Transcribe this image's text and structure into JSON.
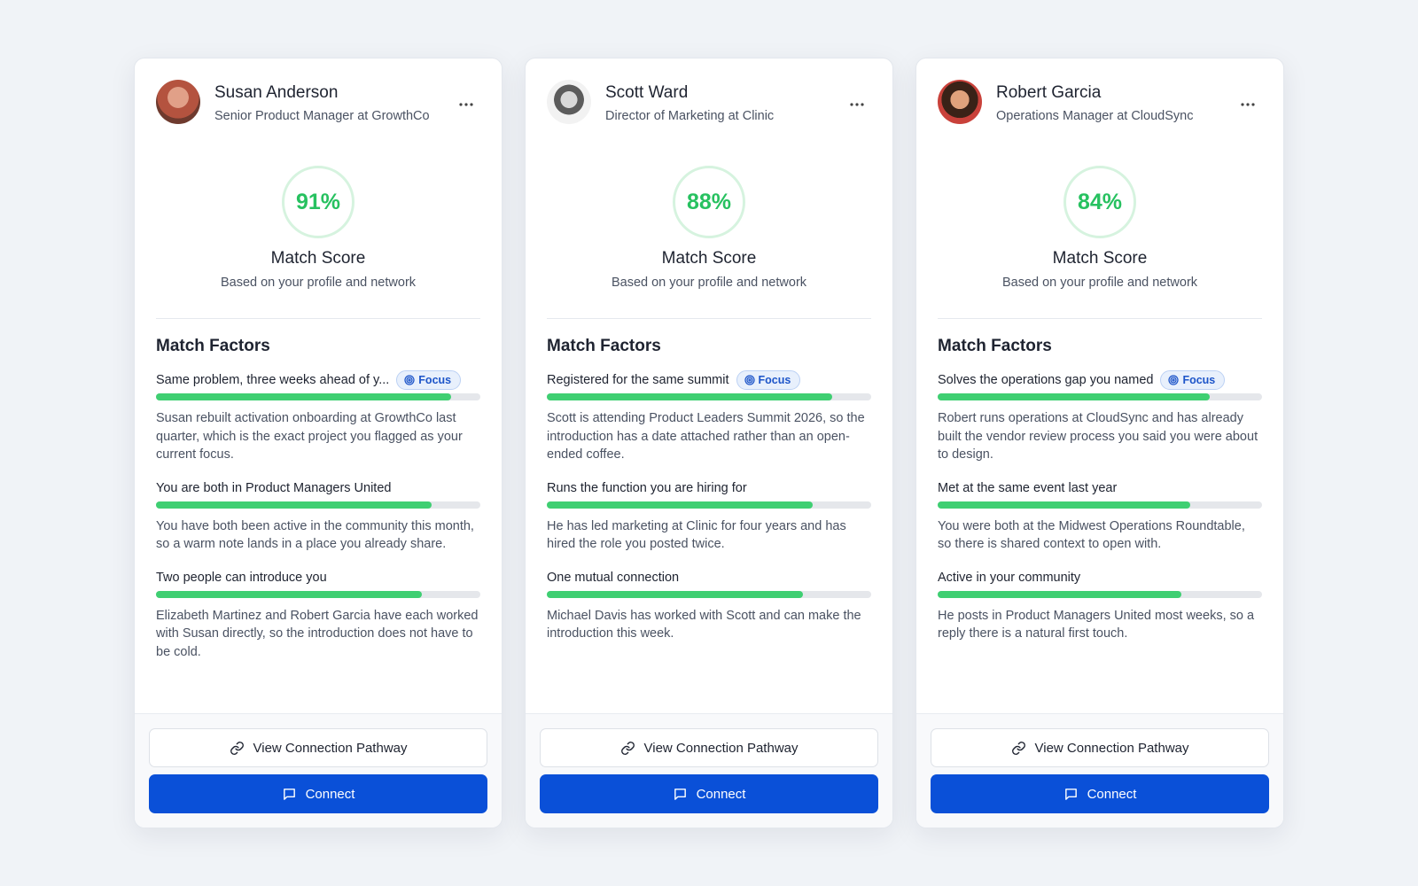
{
  "cards": [
    {
      "name": "Susan Anderson",
      "title": "Senior Product Manager at GrowthCo",
      "score": "91%",
      "score_label": "Match Score",
      "score_note": "Based on your profile and network",
      "factors_heading": "Match Factors",
      "factors": [
        {
          "title": "Same problem, three weeks ahead of y...",
          "badge": "Focus",
          "strength": 91,
          "description": "Susan rebuilt activation onboarding at GrowthCo last quarter, which is the exact project you flagged as your current focus."
        },
        {
          "title": "You are both in Product Managers United",
          "strength": 85,
          "description": "You have both been active in the community this month, so a warm note lands in a place you already share."
        },
        {
          "title": "Two people can introduce you",
          "strength": 82,
          "description": "Elizabeth Martinez and Robert Garcia have each worked with Susan directly, so the introduction does not have to be cold."
        }
      ],
      "actions": {
        "pathway": "View Connection Pathway",
        "connect": "Connect"
      }
    },
    {
      "name": "Scott Ward",
      "title": "Director of Marketing at Clinic",
      "score": "88%",
      "score_label": "Match Score",
      "score_note": "Based on your profile and network",
      "factors_heading": "Match Factors",
      "factors": [
        {
          "title": "Registered for the same summit",
          "badge": "Focus",
          "strength": 88,
          "description": "Scott is attending Product Leaders Summit 2026, so the introduction has a date attached rather than an open-ended coffee."
        },
        {
          "title": "Runs the function you are hiring for",
          "strength": 82,
          "description": "He has led marketing at Clinic for four years and has hired the role you posted twice."
        },
        {
          "title": "One mutual connection",
          "strength": 79,
          "description": "Michael Davis has worked with Scott and can make the introduction this week."
        }
      ],
      "actions": {
        "pathway": "View Connection Pathway",
        "connect": "Connect"
      }
    },
    {
      "name": "Robert Garcia",
      "title": "Operations Manager at CloudSync",
      "score": "84%",
      "score_label": "Match Score",
      "score_note": "Based on your profile and network",
      "factors_heading": "Match Factors",
      "factors": [
        {
          "title": "Solves the operations gap you named",
          "badge": "Focus",
          "strength": 84,
          "description": "Robert runs operations at CloudSync and has already built the vendor review process you said you were about to design."
        },
        {
          "title": "Met at the same event last year",
          "strength": 78,
          "description": "You were both at the Midwest Operations Roundtable, so there is shared context to open with."
        },
        {
          "title": "Active in your community",
          "strength": 75,
          "description": "He posts in Product Managers United most weeks, so a reply there is a natural first touch."
        }
      ],
      "actions": {
        "pathway": "View Connection Pathway",
        "connect": "Connect"
      }
    }
  ]
}
